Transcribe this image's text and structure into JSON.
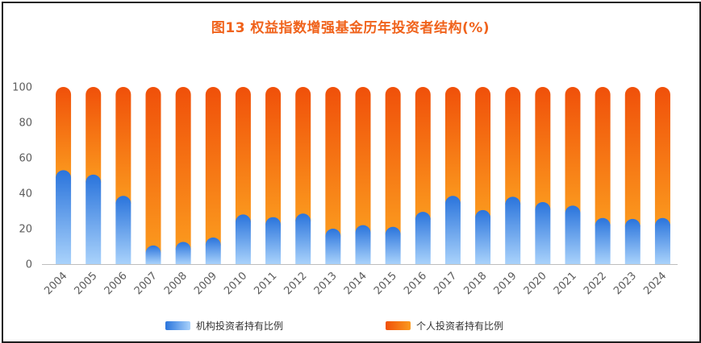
{
  "chart_data": {
    "type": "bar",
    "stacked": true,
    "title": "图13 权益指数增强基金历年投资者结构(%)",
    "xlabel": "",
    "ylabel": "",
    "ylim": [
      0,
      100
    ],
    "yticks": [
      0,
      20,
      40,
      60,
      80,
      100
    ],
    "grid": false,
    "legend_position": "bottom",
    "categories": [
      "2004",
      "2005",
      "2006",
      "2007",
      "2008",
      "2009",
      "2010",
      "2011",
      "2012",
      "2013",
      "2014",
      "2015",
      "2016",
      "2017",
      "2018",
      "2019",
      "2020",
      "2021",
      "2022",
      "2023",
      "2024"
    ],
    "series": [
      {
        "name": "机构投资者持有比例",
        "color": "#2f7fe0",
        "values": [
          53,
          50.5,
          38.5,
          10.5,
          12.5,
          15,
          28,
          26.5,
          28.5,
          20,
          22,
          21,
          29.5,
          38.5,
          30.5,
          38,
          35,
          33,
          26,
          25.5,
          26
        ]
      },
      {
        "name": "个人投资者持有比例",
        "color": "#f25a0c",
        "values": [
          47,
          49.5,
          61.5,
          89.5,
          87.5,
          85,
          72,
          73.5,
          71.5,
          80,
          78,
          79,
          70.5,
          61.5,
          69.5,
          62,
          65,
          67,
          74,
          74.5,
          74
        ]
      }
    ]
  }
}
